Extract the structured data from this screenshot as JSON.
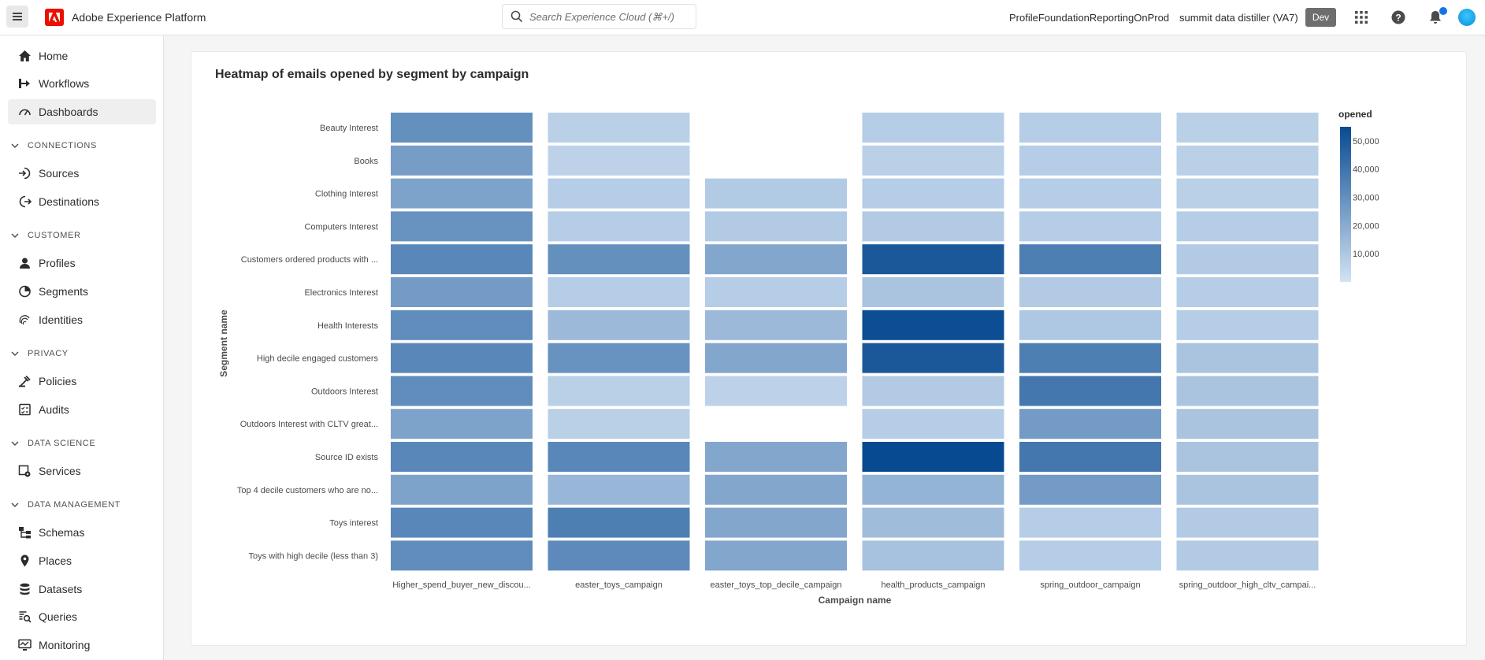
{
  "topbar": {
    "app_title": "Adobe Experience Platform",
    "search_placeholder": "Search Experience Cloud (⌘+/)",
    "org_name": "ProfileFoundationReportingOnProd",
    "sandbox_name": "summit data distiller (VA7)",
    "env_badge": "Dev",
    "icons": [
      "menu-icon",
      "adobe-logo-icon",
      "search-icon",
      "apps-grid-icon",
      "help-icon",
      "bell-icon",
      "avatar"
    ]
  },
  "sidebar": {
    "items": [
      {
        "label": "Home",
        "icon": "home-icon",
        "active": false
      },
      {
        "label": "Workflows",
        "icon": "workflows-icon",
        "active": false
      },
      {
        "label": "Dashboards",
        "icon": "dashboards-icon",
        "active": true
      },
      {
        "section": "CONNECTIONS"
      },
      {
        "label": "Sources",
        "icon": "sources-icon",
        "active": false
      },
      {
        "label": "Destinations",
        "icon": "destinations-icon",
        "active": false
      },
      {
        "section": "CUSTOMER"
      },
      {
        "label": "Profiles",
        "icon": "profiles-icon",
        "active": false
      },
      {
        "label": "Segments",
        "icon": "segments-icon",
        "active": false
      },
      {
        "label": "Identities",
        "icon": "identities-icon",
        "active": false
      },
      {
        "section": "PRIVACY"
      },
      {
        "label": "Policies",
        "icon": "policies-icon",
        "active": false
      },
      {
        "label": "Audits",
        "icon": "audits-icon",
        "active": false
      },
      {
        "section": "DATA SCIENCE"
      },
      {
        "label": "Services",
        "icon": "services-icon",
        "active": false
      },
      {
        "section": "DATA MANAGEMENT"
      },
      {
        "label": "Schemas",
        "icon": "schemas-icon",
        "active": false
      },
      {
        "label": "Places",
        "icon": "places-icon",
        "active": false
      },
      {
        "label": "Datasets",
        "icon": "datasets-icon",
        "active": false
      },
      {
        "label": "Queries",
        "icon": "queries-icon",
        "active": false
      },
      {
        "label": "Monitoring",
        "icon": "monitoring-icon",
        "active": false
      }
    ]
  },
  "card": {
    "title": "Heatmap of emails opened by segment by campaign"
  },
  "chart_data": {
    "type": "heatmap",
    "title": "Heatmap of emails opened by segment by campaign",
    "xlabel": "Campaign name",
    "ylabel": "Segment name",
    "x_categories": [
      "Higher_spend_buyer_new_discou...",
      "easter_toys_campaign",
      "easter_toys_top_decile_campaign",
      "health_products_campaign",
      "spring_outdoor_campaign",
      "spring_outdoor_high_cltv_campai..."
    ],
    "y_categories": [
      "Beauty Interest",
      "Books",
      "Clothing Interest",
      "Computers Interest",
      "Customers ordered products with ...",
      "Electronics Interest",
      "Health Interests",
      "High decile engaged customers",
      "Outdoors Interest",
      "Outdoors Interest with CLTV great...",
      "Source ID exists",
      "Top 4 decile customers who are no...",
      "Toys interest",
      "Toys with high decile (less than 3)"
    ],
    "values": [
      [
        30000,
        7000,
        null,
        8000,
        8000,
        7000
      ],
      [
        25000,
        6000,
        null,
        7000,
        8000,
        7000
      ],
      [
        23000,
        8000,
        9000,
        8000,
        8000,
        7000
      ],
      [
        29000,
        8000,
        9000,
        9000,
        8000,
        8000
      ],
      [
        33000,
        30000,
        22000,
        50000,
        36000,
        9000
      ],
      [
        26000,
        8000,
        8000,
        11000,
        9000,
        8000
      ],
      [
        31000,
        15000,
        15000,
        54000,
        10000,
        8000
      ],
      [
        33000,
        29000,
        22000,
        50000,
        36000,
        11000
      ],
      [
        31000,
        7000,
        6000,
        9000,
        39000,
        11000
      ],
      [
        23000,
        7000,
        null,
        8000,
        26000,
        11000
      ],
      [
        33000,
        33000,
        22000,
        56000,
        39000,
        11000
      ],
      [
        23000,
        16000,
        22000,
        17000,
        26000,
        11000
      ],
      [
        33000,
        36000,
        22000,
        14000,
        8000,
        9000
      ],
      [
        31000,
        32000,
        22000,
        12000,
        8000,
        9000
      ]
    ],
    "legend": {
      "title": "opened",
      "ticks": [
        "50,000",
        "40,000",
        "30,000",
        "20,000",
        "10,000"
      ],
      "tick_values": [
        50000,
        40000,
        30000,
        20000,
        10000
      ],
      "min": 0,
      "max": 55000,
      "placement": "right"
    },
    "colors": {
      "low": "#d3e3f4",
      "high": "#084a91"
    }
  }
}
